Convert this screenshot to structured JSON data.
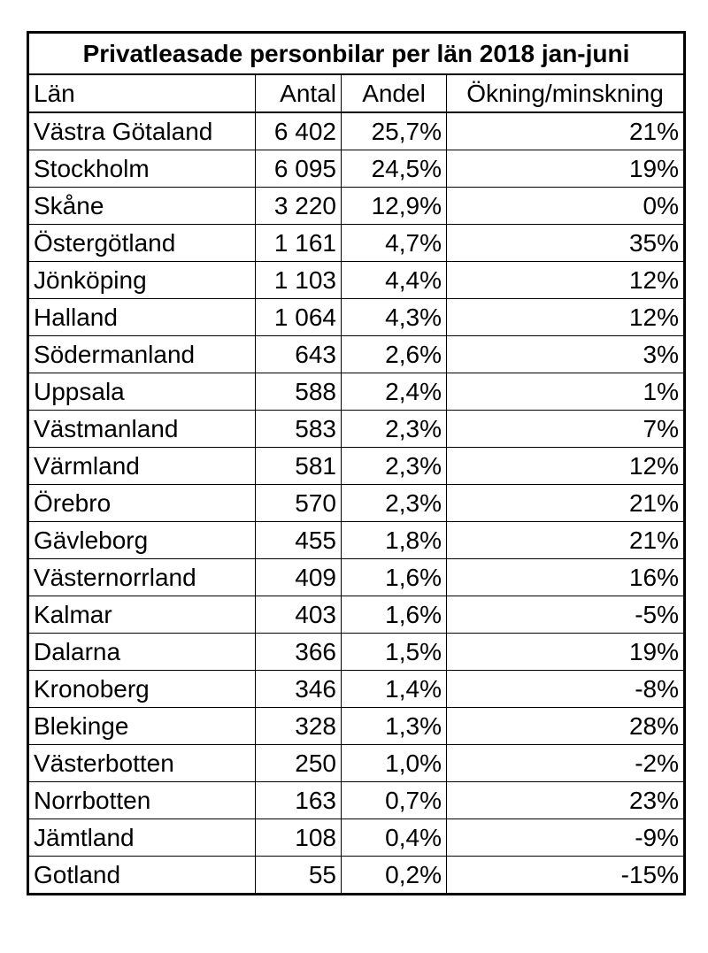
{
  "table": {
    "title": "Privatleasade personbilar per län 2018 jan-juni",
    "header": [
      "Län",
      "Antal",
      "Andel",
      "Ökning/minskning"
    ],
    "rows": [
      [
        "Västra Götaland",
        "6 402",
        "25,7%",
        "21%"
      ],
      [
        "Stockholm",
        "6 095",
        "24,5%",
        "19%"
      ],
      [
        "Skåne",
        "3 220",
        "12,9%",
        "0%"
      ],
      [
        "Östergötland",
        "1 161",
        "4,7%",
        "35%"
      ],
      [
        "Jönköping",
        "1 103",
        "4,4%",
        "12%"
      ],
      [
        "Halland",
        "1 064",
        "4,3%",
        "12%"
      ],
      [
        "Södermanland",
        "643",
        "2,6%",
        "3%"
      ],
      [
        "Uppsala",
        "588",
        "2,4%",
        "1%"
      ],
      [
        "Västmanland",
        "583",
        "2,3%",
        "7%"
      ],
      [
        "Värmland",
        "581",
        "2,3%",
        "12%"
      ],
      [
        "Örebro",
        "570",
        "2,3%",
        "21%"
      ],
      [
        "Gävleborg",
        "455",
        "1,8%",
        "21%"
      ],
      [
        "Västernorrland",
        "409",
        "1,6%",
        "16%"
      ],
      [
        "Kalmar",
        "403",
        "1,6%",
        "-5%"
      ],
      [
        "Dalarna",
        "366",
        "1,5%",
        "19%"
      ],
      [
        "Kronoberg",
        "346",
        "1,4%",
        "-8%"
      ],
      [
        "Blekinge",
        "328",
        "1,3%",
        "28%"
      ],
      [
        "Västerbotten",
        "250",
        "1,0%",
        "-2%"
      ],
      [
        "Norrbotten",
        "163",
        "0,7%",
        "23%"
      ],
      [
        "Jämtland",
        "108",
        "0,4%",
        "-9%"
      ],
      [
        "Gotland",
        "55",
        "0,2%",
        "-15%"
      ]
    ]
  }
}
